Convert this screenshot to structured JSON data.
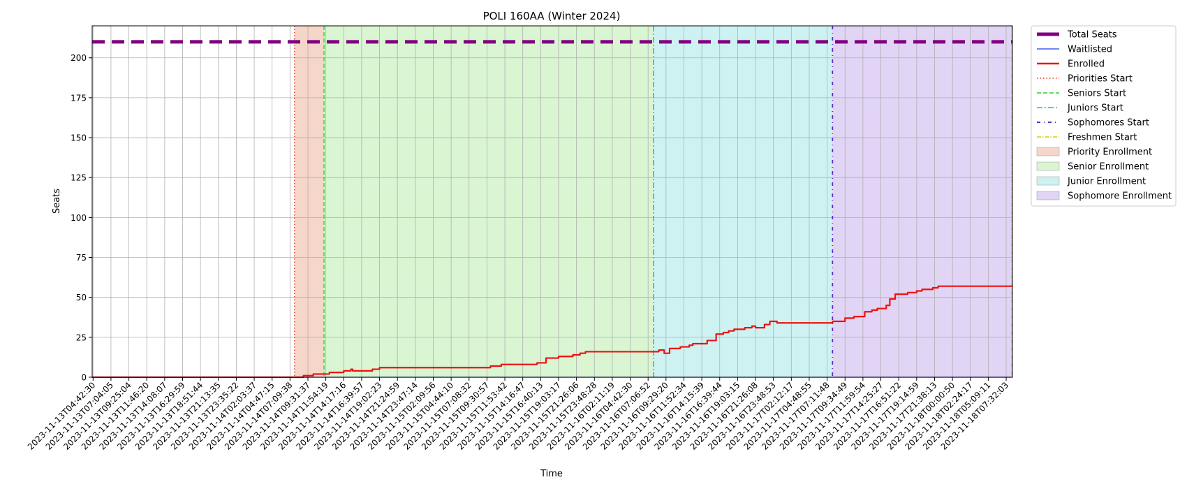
{
  "chart_data": {
    "type": "line",
    "title": "POLI 160AA (Winter 2024)",
    "xlabel": "Time",
    "ylabel": "Seats",
    "ylim": [
      0,
      220
    ],
    "yticks": [
      0,
      25,
      50,
      75,
      100,
      125,
      150,
      175,
      200
    ],
    "xticks": [
      "2023-11-13T04:42:30",
      "2023-11-13T07:04:05",
      "2023-11-13T09:25:04",
      "2023-11-13T11:46:20",
      "2023-11-13T14:08:07",
      "2023-11-13T16:29:59",
      "2023-11-13T18:51:44",
      "2023-11-13T21:13:35",
      "2023-11-13T23:35:22",
      "2023-11-14T02:03:37",
      "2023-11-14T04:47:15",
      "2023-11-14T07:09:38",
      "2023-11-14T09:31:37",
      "2023-11-14T11:54:19",
      "2023-11-14T14:17:16",
      "2023-11-14T16:39:57",
      "2023-11-14T19:02:23",
      "2023-11-14T21:24:59",
      "2023-11-14T23:47:14",
      "2023-11-15T02:09:56",
      "2023-11-15T04:44:10",
      "2023-11-15T07:08:32",
      "2023-11-15T09:30:57",
      "2023-11-15T11:53:42",
      "2023-11-15T14:16:47",
      "2023-11-15T16:40:13",
      "2023-11-15T19:03:17",
      "2023-11-15T21:26:06",
      "2023-11-15T23:48:28",
      "2023-11-16T02:11:19",
      "2023-11-16T04:42:30",
      "2023-11-16T07:06:52",
      "2023-11-16T09:29:20",
      "2023-11-16T11:52:34",
      "2023-11-16T14:15:39",
      "2023-11-16T16:39:44",
      "2023-11-16T19:03:15",
      "2023-11-16T21:26:08",
      "2023-11-16T23:48:53",
      "2023-11-17T02:12:17",
      "2023-11-17T04:48:55",
      "2023-11-17T07:11:48",
      "2023-11-17T09:34:49",
      "2023-11-17T11:59:54",
      "2023-11-17T14:25:27",
      "2023-11-17T16:51:22",
      "2023-11-17T19:14:59",
      "2023-11-17T21:38:13",
      "2023-11-18T00:00:50",
      "2023-11-18T02:24:17",
      "2023-11-18T05:09:11",
      "2023-11-18T07:32:03"
    ],
    "x_range_ticks": [
      -0.05,
      51.35
    ],
    "total_seats": 210,
    "phases": [
      {
        "name": "Priorities Start",
        "at": 11.25,
        "color": "#e8341c",
        "dash": "1.5,3",
        "width": 1.3
      },
      {
        "name": "Seniors Start",
        "at": 12.9,
        "color": "#2ecc2e",
        "dash": "6,3",
        "width": 1.3
      },
      {
        "name": "Juniors Start",
        "at": 31.3,
        "color": "#17becf",
        "dash": "8,3,2,3",
        "width": 1.5
      },
      {
        "name": "Sophomores Start",
        "at": 41.3,
        "color": "#5b2bcc",
        "dash": "5,5,1,5",
        "width": 1.8
      },
      {
        "name": "Freshmen Start",
        "at": 51.3,
        "color": "#e0c800",
        "dash": "6,2,1.5,2",
        "width": 1.3
      }
    ],
    "bands": [
      {
        "name": "Priority Enrollment",
        "from": 11.25,
        "to": 12.9,
        "color": "#f5d6c9"
      },
      {
        "name": "Senior Enrollment",
        "from": 12.9,
        "to": 31.3,
        "color": "#d9f5d2"
      },
      {
        "name": "Junior Enrollment",
        "from": 31.3,
        "to": 41.3,
        "color": "#cef2f2"
      },
      {
        "name": "Sophomore Enrollment",
        "from": 41.3,
        "to": 51.35,
        "color": "#e1d4f5"
      }
    ],
    "series": [
      {
        "name": "Total Seats",
        "color": "#800080",
        "style": "dashed",
        "x": [
          -0.05,
          51.35
        ],
        "y": [
          210,
          210
        ]
      },
      {
        "name": "Waitlisted",
        "color": "#1f3fe8",
        "style": "solid",
        "x": [
          -0.05,
          51.35
        ],
        "y": [
          0,
          0
        ]
      },
      {
        "name": "Enrolled",
        "color": "#ee1111",
        "style": "solid",
        "x": [
          -0.05,
          11.7,
          11.75,
          12.2,
          12.3,
          13.1,
          13.2,
          13.5,
          14.0,
          14.2,
          14.4,
          14.5,
          14.7,
          15.4,
          15.6,
          15.9,
          16.0,
          16.2,
          17.5,
          21.8,
          22.2,
          22.5,
          22.8,
          24.0,
          24.1,
          24.6,
          24.8,
          25.3,
          25.5,
          26.0,
          26.3,
          26.8,
          27.2,
          27.5,
          27.9,
          28.3,
          31.3,
          31.6,
          31.9,
          32.2,
          32.5,
          32.8,
          33.3,
          33.5,
          34.0,
          34.3,
          34.8,
          35.2,
          35.5,
          35.8,
          36.1,
          36.4,
          36.8,
          37.0,
          37.5,
          37.8,
          38.0,
          38.2,
          38.5,
          39.0,
          40.5,
          40.8,
          41.3,
          41.7,
          42.0,
          42.5,
          42.8,
          43.1,
          43.5,
          43.8,
          44.0,
          44.3,
          44.5,
          44.8,
          45.2,
          45.5,
          46.0,
          46.3,
          46.6,
          46.9,
          47.2,
          48.0,
          51.35
        ],
        "y": [
          0,
          0,
          1,
          1,
          2,
          2,
          3,
          3,
          4,
          4,
          5,
          4,
          4,
          4,
          5,
          5,
          6,
          6,
          6,
          6,
          7,
          7,
          8,
          8,
          8,
          8,
          9,
          12,
          12,
          13,
          13,
          14,
          15,
          16,
          16,
          16,
          16,
          17,
          15,
          18,
          18,
          19,
          20,
          21,
          21,
          23,
          27,
          28,
          29,
          30,
          30,
          31,
          32,
          31,
          33,
          35,
          35,
          34,
          34,
          34,
          34,
          34,
          35,
          35,
          37,
          38,
          38,
          41,
          42,
          43,
          43,
          45,
          49,
          52,
          52,
          53,
          54,
          55,
          55,
          56,
          57,
          57,
          57
        ]
      }
    ]
  },
  "legend": {
    "placement": "outside-right",
    "items": [
      {
        "label": "Total Seats",
        "kind": "line",
        "color": "#800080",
        "width": 5,
        "dash": ""
      },
      {
        "label": "Waitlisted",
        "kind": "line",
        "color": "#1f3fe8",
        "width": 1.3,
        "dash": ""
      },
      {
        "label": "Enrolled",
        "kind": "line",
        "color": "#ee1111",
        "width": 2.5,
        "dash": ""
      },
      {
        "label": "Priorities Start",
        "kind": "line",
        "color": "#e8341c",
        "width": 1.5,
        "dash": "1.5,3"
      },
      {
        "label": "Seniors Start",
        "kind": "line",
        "color": "#2ecc2e",
        "width": 1.5,
        "dash": "6,3"
      },
      {
        "label": "Juniors Start",
        "kind": "line",
        "color": "#17becf",
        "width": 1.5,
        "dash": "8,3,2,3"
      },
      {
        "label": "Sophomores Start",
        "kind": "line",
        "color": "#5b2bcc",
        "width": 2,
        "dash": "5,5,1,5"
      },
      {
        "label": "Freshmen Start",
        "kind": "line",
        "color": "#e0c800",
        "width": 1.5,
        "dash": "6,2,1.5,2"
      },
      {
        "label": "Priority Enrollment",
        "kind": "patch",
        "color": "#f5d6c9"
      },
      {
        "label": "Senior Enrollment",
        "kind": "patch",
        "color": "#d9f5d2"
      },
      {
        "label": "Junior Enrollment",
        "kind": "patch",
        "color": "#cef2f2"
      },
      {
        "label": "Sophomore Enrollment",
        "kind": "patch",
        "color": "#e1d4f5"
      }
    ]
  },
  "grid": true
}
